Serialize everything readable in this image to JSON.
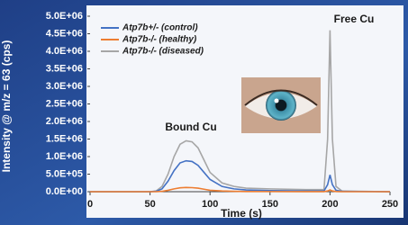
{
  "chart_data": {
    "type": "line",
    "x_label": "Time (s)",
    "y_label": "Intensity @ m/z = 63 (cps)",
    "annotations": [
      "Bound Cu",
      "Free Cu"
    ],
    "x": [
      0,
      50,
      55,
      60,
      65,
      70,
      75,
      80,
      85,
      90,
      95,
      100,
      110,
      120,
      130,
      150,
      180,
      195,
      198,
      200,
      202,
      205,
      210,
      250
    ],
    "series": [
      {
        "name": "Atp7b+/- (control)",
        "color": "#4472c4",
        "values": [
          0,
          0,
          10000,
          80000,
          300000,
          600000,
          820000,
          880000,
          860000,
          750000,
          550000,
          350000,
          150000,
          80000,
          50000,
          30000,
          20000,
          20000,
          200000,
          480000,
          200000,
          40000,
          10000,
          0
        ]
      },
      {
        "name": "Atp7b-/- (healthy)",
        "color": "#ed7d31",
        "values": [
          0,
          0,
          0,
          10000,
          40000,
          80000,
          110000,
          120000,
          115000,
          100000,
          70000,
          40000,
          20000,
          10000,
          5000,
          3000,
          2000,
          2000,
          20000,
          50000,
          20000,
          5000,
          0,
          0
        ]
      },
      {
        "name": "Atp7b-/- (diseased)",
        "color": "#a6a6a6",
        "values": [
          0,
          0,
          20000,
          150000,
          500000,
          1000000,
          1350000,
          1450000,
          1420000,
          1250000,
          900000,
          550000,
          250000,
          150000,
          100000,
          80000,
          60000,
          60000,
          1500000,
          4600000,
          1500000,
          150000,
          20000,
          0
        ]
      }
    ],
    "xlim": [
      0,
      250
    ],
    "xticks": [
      0,
      50,
      100,
      150,
      200,
      250
    ],
    "ylim": [
      0,
      5000000
    ],
    "yticks": [
      {
        "value": 0,
        "label": "0.0E+00"
      },
      {
        "value": 500000,
        "label": "5.0E+05"
      },
      {
        "value": 1000000,
        "label": "1.0E+06"
      },
      {
        "value": 1500000,
        "label": "1.5E+06"
      },
      {
        "value": 2000000,
        "label": "2.0E+06"
      },
      {
        "value": 2500000,
        "label": "2.5E+06"
      },
      {
        "value": 3000000,
        "label": "3.0E+06"
      },
      {
        "value": 3500000,
        "label": "3.5E+06"
      },
      {
        "value": 4000000,
        "label": "4.0E+06"
      },
      {
        "value": 4500000,
        "label": "4.5E+06"
      },
      {
        "value": 5000000,
        "label": "5.0E+06"
      }
    ],
    "legend": "upper-left"
  }
}
